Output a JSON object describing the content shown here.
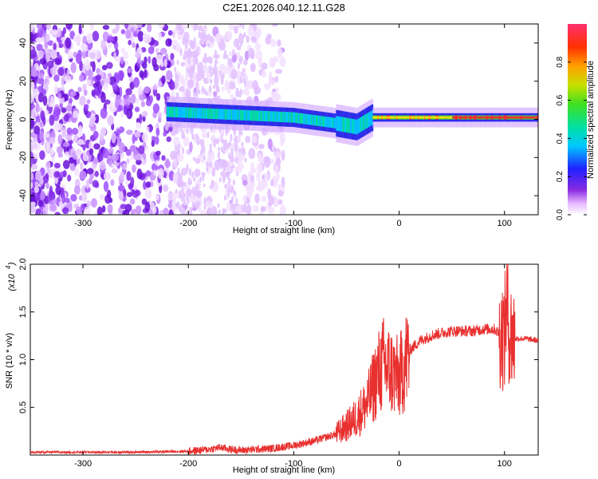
{
  "figure_title": "C2E1.2026.040.12.11.G28",
  "colors": {
    "snr_line": "#e8302f",
    "axis": "#000000",
    "background": "#ffffff"
  },
  "chart_data": [
    {
      "type": "heatmap",
      "title": "C2E1.2026.040.12.11.G28",
      "xlabel": "Height of straight line (km)",
      "ylabel": "Frequency (Hz)",
      "xlim": [
        -350,
        132
      ],
      "ylim": [
        -50,
        50
      ],
      "xticks": [
        -300,
        -200,
        -100,
        0,
        100
      ],
      "yticks": [
        -40,
        -20,
        0,
        20,
        40
      ],
      "xtick_labels": [
        "-300",
        "-200",
        "-100",
        "0",
        "100"
      ],
      "ytick_labels": [
        "-40",
        "-20",
        "0",
        "20",
        "40"
      ],
      "colorbar": {
        "label": "Normalized spectral amplitude",
        "range": [
          0,
          1
        ],
        "ticks": [
          0.0,
          0.2,
          0.4,
          0.6,
          0.8
        ],
        "tick_labels": [
          "0.0",
          "0.2",
          "0.4",
          "0.6",
          "0.8"
        ]
      },
      "regions": {
        "noise_x_range": [
          -350,
          -150
        ],
        "signal_start_km": -220,
        "signal_center_hz": [
          {
            "x": -220,
            "y": 4
          },
          {
            "x": -180,
            "y": 3
          },
          {
            "x": -140,
            "y": 2
          },
          {
            "x": -100,
            "y": 1
          },
          {
            "x": -60,
            "y": -2
          },
          {
            "x": -40,
            "y": -4
          },
          {
            "x": -25,
            "y": 1
          },
          {
            "x": 0,
            "y": 1
          },
          {
            "x": 50,
            "y": 1
          },
          {
            "x": 100,
            "y": 1
          },
          {
            "x": 132,
            "y": 1
          }
        ]
      }
    },
    {
      "type": "line",
      "xlabel": "Height of straight line (km)",
      "ylabel": "SNR (10 * v/v)",
      "y_multiplier": "(x10",
      "y_multiplier_exp": "4",
      "xlim": [
        -350,
        132
      ],
      "ylim": [
        0,
        2.0
      ],
      "xticks": [
        -300,
        -200,
        -100,
        0,
        100
      ],
      "yticks": [
        0.5,
        1.0,
        1.5,
        2.0
      ],
      "xtick_labels": [
        "-300",
        "-200",
        "-100",
        "0",
        "100"
      ],
      "ytick_labels": [
        "0.5",
        "1.0",
        "1.5",
        "2.0"
      ],
      "series": [
        {
          "name": "SNR",
          "x": [
            -350,
            -300,
            -250,
            -200,
            -180,
            -170,
            -160,
            -150,
            -120,
            -100,
            -80,
            -60,
            -50,
            -40,
            -30,
            -25,
            -20,
            -15,
            -10,
            -5,
            0,
            5,
            10,
            20,
            30,
            40,
            50,
            60,
            70,
            80,
            90,
            95,
            100,
            102,
            105,
            110,
            120,
            132
          ],
          "y": [
            0.03,
            0.03,
            0.03,
            0.04,
            0.06,
            0.08,
            0.06,
            0.05,
            0.07,
            0.1,
            0.15,
            0.22,
            0.3,
            0.4,
            0.55,
            0.7,
            0.85,
            0.95,
            0.9,
            0.85,
            0.8,
            0.95,
            1.1,
            1.2,
            1.25,
            1.28,
            1.3,
            1.3,
            1.3,
            1.32,
            1.32,
            1.28,
            1.25,
            1.6,
            1.25,
            1.22,
            1.22,
            1.2
          ]
        }
      ]
    }
  ]
}
